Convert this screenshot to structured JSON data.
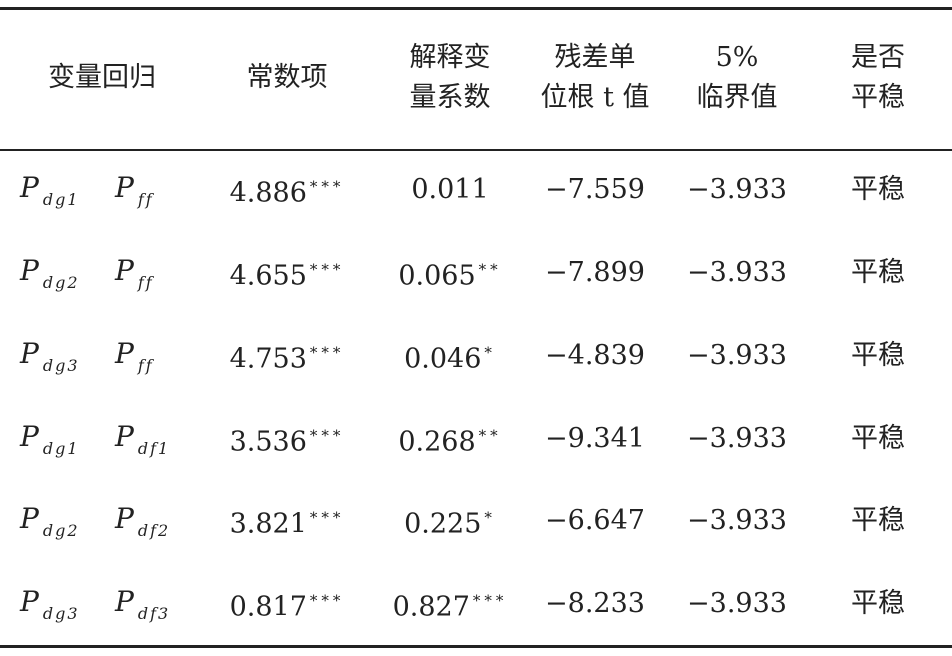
{
  "header": [
    [
      "变量回归"
    ],
    [
      "常数项"
    ],
    [
      "解释变",
      "量系数"
    ],
    [
      "残差单",
      "位根 t 值"
    ],
    [
      "5%",
      "临界值"
    ],
    [
      "是否",
      "平稳"
    ]
  ],
  "rows": [
    {
      "y": {
        "base": "P",
        "sub": "dg1"
      },
      "x": {
        "base": "P",
        "sub": "ff"
      },
      "constant": {
        "value": "4.886",
        "stars": "***"
      },
      "coefficient": {
        "value": "0.011"
      },
      "residual_t": "−7.559",
      "critical": "−3.933",
      "stationary": "平稳"
    },
    {
      "y": {
        "base": "P",
        "sub": "dg2"
      },
      "x": {
        "base": "P",
        "sub": "ff"
      },
      "constant": {
        "value": "4.655",
        "stars": "***"
      },
      "coefficient": {
        "value": "0.065",
        "stars": "**"
      },
      "residual_t": "−7.899",
      "critical": "−3.933",
      "stationary": "平稳"
    },
    {
      "y": {
        "base": "P",
        "sub": "dg3"
      },
      "x": {
        "base": "P",
        "sub": "ff"
      },
      "constant": {
        "value": "4.753",
        "stars": "***"
      },
      "coefficient": {
        "value": "0.046",
        "stars": "*"
      },
      "residual_t": "−4.839",
      "critical": "−3.933",
      "stationary": "平稳"
    },
    {
      "y": {
        "base": "P",
        "sub": "dg1"
      },
      "x": {
        "base": "P",
        "sub": "df1"
      },
      "constant": {
        "value": "3.536",
        "stars": "***"
      },
      "coefficient": {
        "value": "0.268",
        "stars": "**"
      },
      "residual_t": "−9.341",
      "critical": "−3.933",
      "stationary": "平稳"
    },
    {
      "y": {
        "base": "P",
        "sub": "dg2"
      },
      "x": {
        "base": "P",
        "sub": "df2"
      },
      "constant": {
        "value": "3.821",
        "stars": "***"
      },
      "coefficient": {
        "value": "0.225",
        "stars": "*"
      },
      "residual_t": "−6.647",
      "critical": "−3.933",
      "stationary": "平稳"
    },
    {
      "y": {
        "base": "P",
        "sub": "dg3"
      },
      "x": {
        "base": "P",
        "sub": "df3"
      },
      "constant": {
        "value": "0.817",
        "stars": "***"
      },
      "coefficient": {
        "value": "0.827",
        "stars": "***"
      },
      "residual_t": "−8.233",
      "critical": "−3.933",
      "stationary": "平稳"
    }
  ]
}
